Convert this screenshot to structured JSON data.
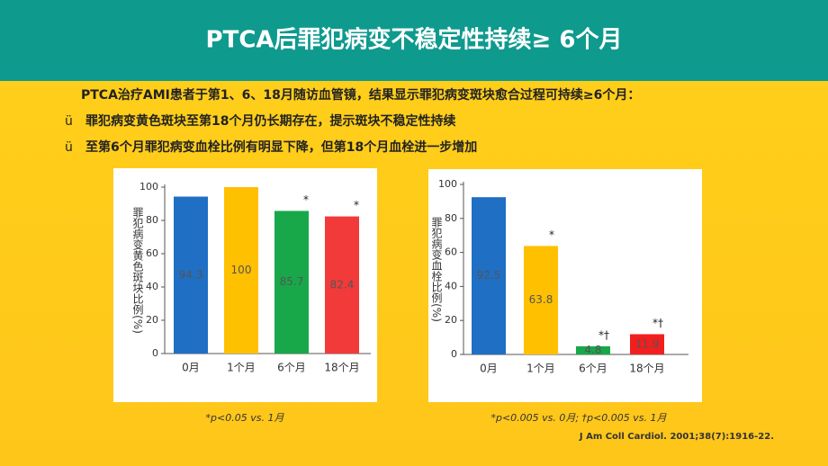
{
  "slide": {
    "title": "PTCA后罪犯病变不稳定性持续≥ 6个月",
    "intro": "PTCA治疗AMI患者于第1、6、18月随访血管镜，结果显示罪犯病变斑块愈合过程可持续≥6个月：",
    "bullets": [
      {
        "mark": "ü",
        "text": "罪犯病变黄色斑块至第18个月仍长期存在，提示斑块不稳定性持续"
      },
      {
        "mark": "ü",
        "text": "至第6个月罪犯病变血栓比例有明显下降，但第18个月血栓进一步增加"
      }
    ],
    "citation": "J Am Coll Cardiol. 2001;38(7):1916-22."
  },
  "chart_data": [
    {
      "type": "bar",
      "ylabel": "罪犯病变黄色斑块比例(%)",
      "categories": [
        "0月",
        "1个月",
        "6个月",
        "18个月"
      ],
      "values": [
        94.3,
        100,
        85.7,
        82.4
      ],
      "colors": [
        "#1f6fc4",
        "#ffc000",
        "#18a849",
        "#f23a3a"
      ],
      "value_notes": [
        null,
        null,
        "*",
        "*"
      ],
      "ylim": [
        0,
        100
      ],
      "yticks": [
        0,
        20,
        40,
        60,
        80,
        100
      ],
      "footnote": "*p<0.05 vs. 1月"
    },
    {
      "type": "bar",
      "ylabel": "罪犯病变血栓比例(%)",
      "categories": [
        "0月",
        "1个月",
        "6个月",
        "18个月"
      ],
      "values": [
        92.5,
        63.8,
        4.8,
        11.9
      ],
      "colors": [
        "#1f6fc4",
        "#ffc000",
        "#18a849",
        "#f21f1f"
      ],
      "value_notes": [
        null,
        "*",
        "*†",
        "*†"
      ],
      "ylim": [
        0,
        100
      ],
      "yticks": [
        0,
        20,
        40,
        60,
        80,
        100
      ],
      "footnote": "*p<0.005 vs. 0月; †p<0.005 vs. 1月"
    }
  ]
}
